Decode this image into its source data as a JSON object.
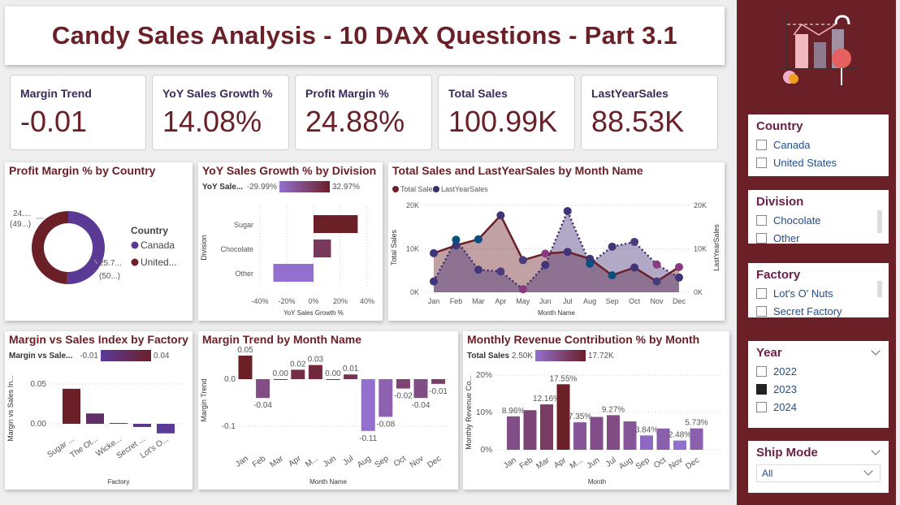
{
  "title": "Candy Sales Analysis - 10 DAX Questions - Part 3.1",
  "kpis": [
    {
      "label": "Margin Trend",
      "value": "-0.01"
    },
    {
      "label": "YoY Sales Growth %",
      "value": "14.08%"
    },
    {
      "label": "Profit Margin %",
      "value": "24.88%"
    },
    {
      "label": "Total Sales",
      "value": "100.99K"
    },
    {
      "label": "LastYearSales",
      "value": "88.53K"
    }
  ],
  "colors": {
    "brand": "#6b2027",
    "purple": "#5a3a95",
    "light_purple": "#9370d0"
  },
  "slicers": {
    "country": {
      "title": "Country",
      "items": [
        {
          "label": "Canada",
          "checked": false
        },
        {
          "label": "United States",
          "checked": false
        }
      ]
    },
    "division": {
      "title": "Division",
      "items": [
        {
          "label": "Chocolate",
          "checked": false
        },
        {
          "label": "Other",
          "checked": false
        }
      ]
    },
    "factory": {
      "title": "Factory",
      "items": [
        {
          "label": "Lot's O' Nuts",
          "checked": false
        },
        {
          "label": "Secret Factory",
          "checked": false
        }
      ]
    },
    "year": {
      "title": "Year",
      "items": [
        {
          "label": "2022",
          "checked": false
        },
        {
          "label": "2023",
          "checked": true
        },
        {
          "label": "2024",
          "checked": false
        }
      ]
    },
    "ship_mode": {
      "title": "Ship Mode",
      "selected": "All"
    }
  },
  "logo_icon": "candy-chart-illustration",
  "chart_data": [
    {
      "id": "donut",
      "type": "pie",
      "title": "Profit Margin % by Country",
      "legend_title": "Country",
      "legend_position": "right",
      "slices": [
        {
          "name": "Canada",
          "value": 25.7,
          "share": 50.5,
          "label": "25.7...",
          "sublabel": "(50...)"
        },
        {
          "name": "United...",
          "value": 24.1,
          "share": 49.5,
          "label": "24....",
          "sublabel": "(49...)"
        }
      ]
    },
    {
      "id": "yoy",
      "type": "bar",
      "title": "YoY Sales Growth % by Division",
      "legend_label": "YoY Sale...",
      "legend_min": "-29.99%",
      "legend_max": "32.97%",
      "categories": [
        "Sugar",
        "Chocolate",
        "Other"
      ],
      "values": [
        32.97,
        13.0,
        -29.99
      ],
      "xlabel": "YoY Sales Growth %",
      "ylabel": "Division",
      "xlim": [
        -40,
        40
      ],
      "xticks": [
        "-40%",
        "-20%",
        "0%",
        "20%",
        "40%"
      ]
    },
    {
      "id": "line",
      "type": "area",
      "title": "Total Sales and LastYearSales by Month Name",
      "legend_position": "top-left",
      "categories": [
        "Jan",
        "Feb",
        "Mar",
        "Apr",
        "May",
        "Jun",
        "Jul",
        "Aug",
        "Sep",
        "Oct",
        "Nov",
        "Dec"
      ],
      "series": [
        {
          "name": "Total Sales",
          "values": [
            9.0,
            10.8,
            12.2,
            17.7,
            7.4,
            8.9,
            9.3,
            7.7,
            3.9,
            5.7,
            2.5,
            5.8
          ]
        },
        {
          "name": "LastYearSales",
          "values": [
            2.5,
            12.1,
            5.2,
            4.8,
            0.7,
            6.3,
            18.7,
            6.6,
            10.5,
            11.6,
            6.4,
            3.4
          ]
        }
      ],
      "xlabel": "Month Name",
      "ylabel": "Total Sales",
      "y2label": "LastYearSales",
      "ylim": [
        0,
        20
      ],
      "yticks": [
        "0K",
        "10K",
        "20K"
      ]
    },
    {
      "id": "factory",
      "type": "bar",
      "title": "Margin vs Sales Index by Factory",
      "legend_label": "Margin vs Sale...",
      "legend_min": "-0.01",
      "legend_max": "0.04",
      "categories": [
        "Sugar ...",
        "The Ot...",
        "Wicke...",
        "Secret ...",
        "Lot's O..."
      ],
      "values": [
        0.044,
        0.013,
        0.001,
        -0.004,
        -0.012
      ],
      "xlabel": "Factory",
      "ylabel": "Margin vs Sales In...",
      "yticks": [
        "0.00",
        "0.05"
      ]
    },
    {
      "id": "trend",
      "type": "bar",
      "title": "Margin Trend by Month Name",
      "categories": [
        "Jan",
        "Feb",
        "Mar",
        "Apr",
        "M...",
        "Jun",
        "Jul",
        "Aug",
        "Sep",
        "Oct",
        "Nov",
        "Dec"
      ],
      "values": [
        0.05,
        -0.04,
        0.0,
        0.02,
        0.03,
        0.0,
        0.01,
        -0.11,
        -0.08,
        -0.02,
        -0.04,
        -0.01
      ],
      "labels": [
        "0.05",
        "-0.04",
        "0.00",
        "0.02",
        "0.03",
        "0.00",
        "0.01",
        "-0.11",
        "-0.08",
        "-0.02",
        "-0.04",
        "-0.01"
      ],
      "xlabel": "Month Name",
      "ylabel": "Margin Trend",
      "yticks": [
        "-0.1",
        "0.0"
      ]
    },
    {
      "id": "revenue",
      "type": "bar",
      "title": "Monthly Revenue Contribution % by Month",
      "legend_label": "Total Sales",
      "legend_min": "2.50K",
      "legend_max": "17.72K",
      "categories": [
        "Jan",
        "Feb",
        "Mar",
        "Apr",
        "M...",
        "Jun",
        "Jul",
        "Aug",
        "Sep",
        "Oct",
        "Nov",
        "Dec"
      ],
      "values": [
        8.96,
        10.6,
        12.16,
        17.55,
        7.35,
        8.8,
        9.27,
        7.6,
        3.84,
        5.7,
        2.48,
        5.73
      ],
      "labels": [
        "8.96%",
        "",
        "12.16%",
        "17.55%",
        "7.35%",
        "",
        "9.27%",
        "",
        "3.84%",
        "",
        "2.48%",
        "5.73%"
      ],
      "xlabel": "Month",
      "ylabel": "Monthly Revenue Co...",
      "yticks": [
        "0%",
        "10%",
        "20%"
      ]
    }
  ]
}
